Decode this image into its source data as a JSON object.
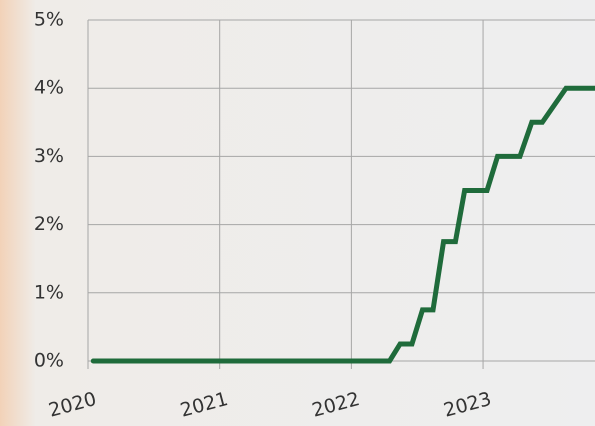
{
  "chart_data": {
    "type": "line",
    "x": [
      2020.04,
      2022.29,
      2022.37,
      2022.46,
      2022.54,
      2022.62,
      2022.7,
      2022.79,
      2022.86,
      2023.03,
      2023.11,
      2023.28,
      2023.37,
      2023.45,
      2023.63,
      2023.85
    ],
    "series": [
      {
        "color": "#1f6b3b",
        "values": [
          0,
          0,
          0.25,
          0.25,
          0.75,
          0.75,
          1.75,
          1.75,
          2.5,
          2.5,
          3,
          3,
          3.5,
          3.5,
          4,
          4
        ]
      }
    ],
    "xlim": [
      2020,
      2023.85
    ],
    "xticks": [
      2020,
      2021,
      2022,
      2023
    ],
    "ylim": [
      0,
      5
    ],
    "yticks": [
      {
        "value": 0,
        "label": "0%"
      },
      {
        "value": 1,
        "label": "1%"
      },
      {
        "value": 2,
        "label": "2%"
      },
      {
        "value": 3,
        "label": "3%"
      },
      {
        "value": 4,
        "label": "4%"
      },
      {
        "value": 5,
        "label": "5%"
      }
    ],
    "grid": true
  }
}
